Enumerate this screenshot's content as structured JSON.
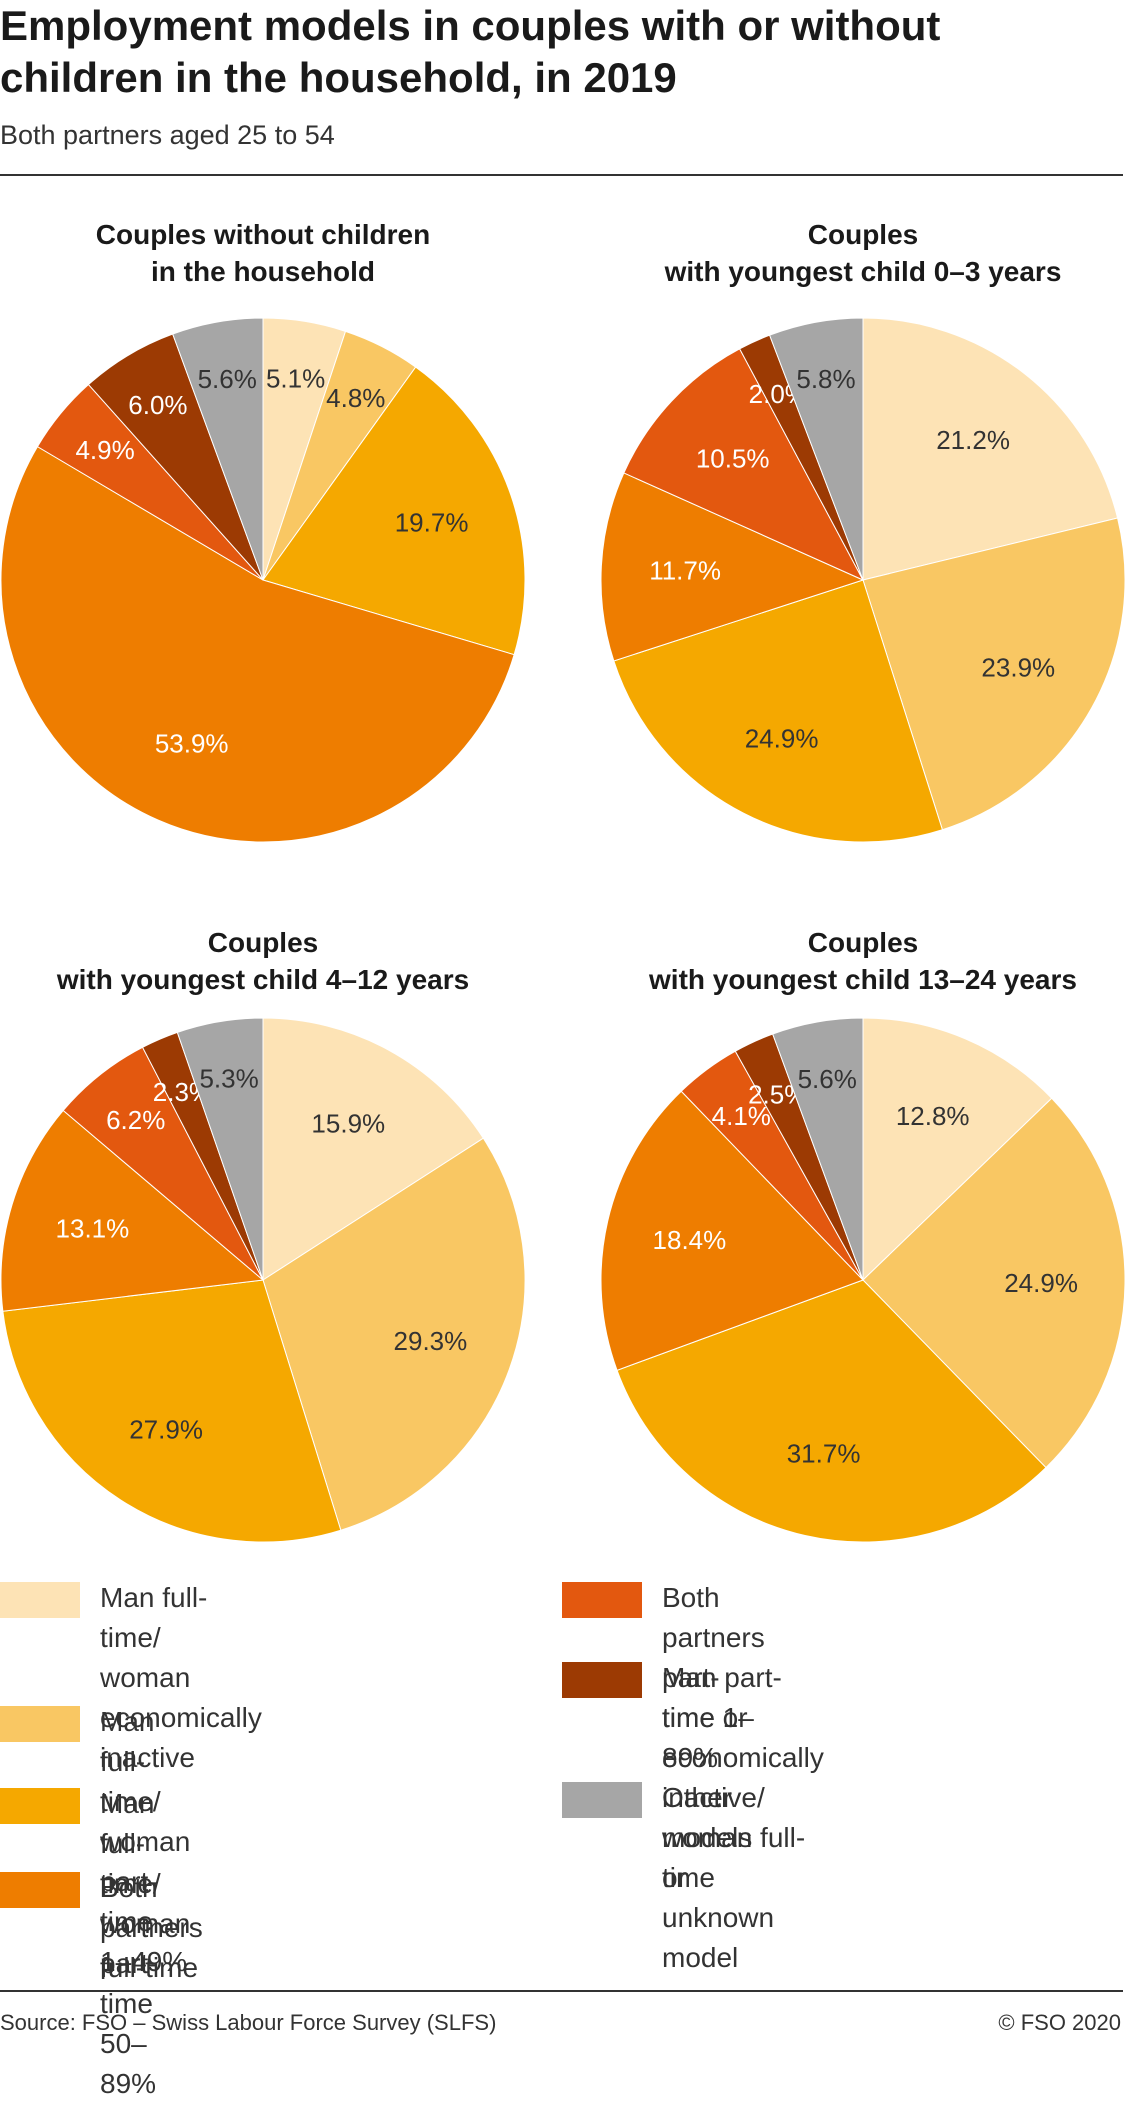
{
  "header": {
    "title_line1": "Employment models in couples with or without",
    "title_line2": "children in the household, in 2019",
    "subtitle": "Both partners aged 25 to 54"
  },
  "colors": {
    "man_ft_woman_inactive": "#fde3b5",
    "man_ft_woman_pt_1_49": "#f9c763",
    "man_ft_woman_pt_50_89": "#f5a800",
    "both_ft": "#ee7d00",
    "both_pt": "#e3580f",
    "man_pt_woman_ft": "#9c3a03",
    "other": "#a6a6a6"
  },
  "chart_data": [
    {
      "type": "pie",
      "title": "Couples without children in the household",
      "title_lines": [
        "Couples without children",
        "in the household"
      ],
      "categories": [
        "Man full-time/ woman economically inactive",
        "Man full-time/ woman part-time 1–49%",
        "Man full-time/ woman part-time 50–89%",
        "Both partners full-time",
        "Both partners part-time 1–89%",
        "Man part-time or economically inactive/ woman full-time",
        "Other models or unknown model"
      ],
      "values": [
        5.1,
        4.8,
        19.7,
        53.9,
        4.9,
        6.0,
        5.6
      ],
      "labels": [
        "5.1%",
        "4.8%",
        "19.7%",
        "53.9%",
        "4.9%",
        "6.0%",
        "5.6%"
      ]
    },
    {
      "type": "pie",
      "title": "Couples with youngest child 0–3 years",
      "title_lines": [
        "Couples",
        "with youngest child 0–3 years"
      ],
      "categories": [
        "Man full-time/ woman economically inactive",
        "Man full-time/ woman part-time 1–49%",
        "Man full-time/ woman part-time 50–89%",
        "Both partners full-time",
        "Both partners part-time 1–89%",
        "Man part-time or economically inactive/ woman full-time",
        "Other models or unknown model"
      ],
      "values": [
        21.2,
        23.9,
        24.9,
        11.7,
        10.5,
        2.0,
        5.8
      ],
      "labels": [
        "21.2%",
        "23.9%",
        "24.9%",
        "11.7%",
        "10.5%",
        "2.0%",
        "5.8%"
      ]
    },
    {
      "type": "pie",
      "title": "Couples with youngest child 4–12 years",
      "title_lines": [
        "Couples",
        "with youngest child 4–12 years"
      ],
      "categories": [
        "Man full-time/ woman economically inactive",
        "Man full-time/ woman part-time 1–49%",
        "Man full-time/ woman part-time 50–89%",
        "Both partners full-time",
        "Both partners part-time 1–89%",
        "Man part-time or economically inactive/ woman full-time",
        "Other models or unknown model"
      ],
      "values": [
        15.9,
        29.3,
        27.9,
        13.1,
        6.2,
        2.3,
        5.3
      ],
      "labels": [
        "15.9%",
        "29.3%",
        "27.9%",
        "13.1%",
        "6.2%",
        "2.3%",
        "5.3%"
      ]
    },
    {
      "type": "pie",
      "title": "Couples with youngest child 13–24 years",
      "title_lines": [
        "Couples",
        "with youngest child 13–24 years"
      ],
      "categories": [
        "Man full-time/ woman economically inactive",
        "Man full-time/ woman part-time 1–49%",
        "Man full-time/ woman part-time 50–89%",
        "Both partners full-time",
        "Both partners part-time 1–89%",
        "Man part-time or economically inactive/ woman full-time",
        "Other models or unknown model"
      ],
      "values": [
        12.8,
        24.9,
        31.7,
        18.4,
        4.1,
        2.5,
        5.6
      ],
      "labels": [
        "12.8%",
        "24.9%",
        "31.7%",
        "18.4%",
        "4.1%",
        "2.5%",
        "5.6%"
      ]
    }
  ],
  "legend": [
    {
      "lines": [
        "Man full-time/",
        "woman economically",
        "inactive"
      ],
      "color_key": "man_ft_woman_inactive"
    },
    {
      "lines": [
        "Man full-time/",
        "woman part-time 1–49%"
      ],
      "color_key": "man_ft_woman_pt_1_49"
    },
    {
      "lines": [
        "Man full-time/",
        "woman part-time 50–89%"
      ],
      "color_key": "man_ft_woman_pt_50_89"
    },
    {
      "lines": [
        "Both partners",
        "full-time"
      ],
      "color_key": "both_ft"
    },
    {
      "lines": [
        "Both partners",
        "part-time 1–89%"
      ],
      "color_key": "both_pt"
    },
    {
      "lines": [
        "Man part-time or",
        "economically inactive/",
        "woman full-time"
      ],
      "color_key": "man_pt_woman_ft"
    },
    {
      "lines": [
        "Other models or",
        "unknown model"
      ],
      "color_key": "other"
    }
  ],
  "footer": {
    "source": "Source: FSO – Swiss Labour Force Survey (SLFS)",
    "copyright": "© FSO 2020"
  }
}
